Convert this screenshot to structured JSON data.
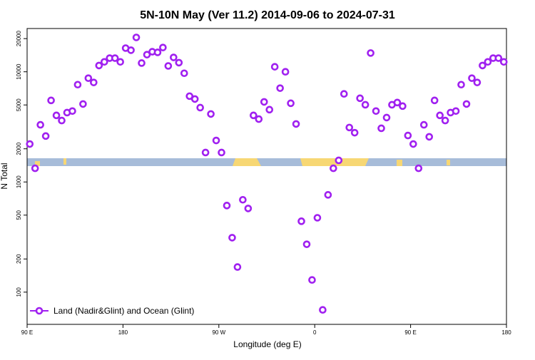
{
  "chart_data": {
    "type": "scatter",
    "title": "5N-10N May (Ver 11.2)   2014-09-06 to 2024-07-31",
    "x_label": "Longitude (deg E)",
    "y_label": "N Total",
    "log_y": true,
    "legend_position": "bottom-left",
    "xlim": [
      90,
      540
    ],
    "ylim": [
      51,
      24700
    ],
    "xticks": [
      {
        "value": 90,
        "label": "90 E"
      },
      180,
      {
        "value": 270,
        "label": "90 W"
      },
      {
        "value": 360,
        "label": "0"
      },
      {
        "value": 450,
        "label": "90 E"
      },
      {
        "value": 540,
        "label": "180"
      }
    ],
    "yticks": [
      100,
      200,
      500,
      1000,
      2000,
      5000,
      10000,
      20000
    ],
    "series": [
      {
        "name": "Land (Nadir&Glint) and Ocean (Glint)",
        "color": "#a020f0",
        "x": [
          92.5,
          97.5,
          102.5,
          107.5,
          112.5,
          117.5,
          122.5,
          127.5,
          132.5,
          137.5,
          142.5,
          147.5,
          152.5,
          157.5,
          162.5,
          167.5,
          172.5,
          177.5,
          182.5,
          187.5,
          192.5,
          197.5,
          202.5,
          207.5,
          212.5,
          217.5,
          222.5,
          227.5,
          232.5,
          237.5,
          242.5,
          247.5,
          252.5,
          257.5,
          262.5,
          267.5,
          272.5,
          277.5,
          282.5,
          287.5,
          292.5,
          297.5,
          302.5,
          307.5,
          312.5,
          317.5,
          322.5,
          327.5,
          332.5,
          337.5,
          342.5,
          347.5,
          352.5,
          357.5,
          362.5,
          367.5,
          372.5,
          377.5,
          382.5,
          387.5,
          392.5,
          397.5,
          402.5,
          407.5,
          412.5,
          417.5,
          422.5,
          427.5,
          432.5,
          437.5,
          442.5,
          447.5,
          452.5,
          457.5,
          462.5,
          467.5,
          472.5,
          477.5,
          482.5,
          487.5,
          492.5,
          497.5,
          502.5,
          507.5,
          512.5,
          517.5,
          522.5,
          527.5,
          532.5,
          537.5
        ],
        "values": [
          2210,
          1330,
          3300,
          2610,
          5500,
          4020,
          3610,
          4260,
          4400,
          7640,
          5100,
          8750,
          8000,
          11400,
          12300,
          13300,
          13300,
          12300,
          16400,
          15700,
          20500,
          12000,
          14300,
          15200,
          15000,
          16600,
          11300,
          13500,
          12100,
          9700,
          6010,
          5660,
          4730,
          1850,
          4140,
          2380,
          1850,
          611,
          312,
          169,
          689,
          575,
          4020,
          3720,
          5330,
          4530,
          11100,
          7100,
          10000,
          5180,
          3360,
          440,
          272,
          129,
          473,
          69,
          764,
          1330,
          1570,
          6300,
          3120,
          2800,
          5750,
          5020,
          14800,
          4400,
          3070,
          3840,
          5020,
          5260,
          4880,
          2640,
          2210,
          1330,
          3300,
          2570,
          5500,
          4020,
          3610,
          4260,
          4400,
          7640,
          5100,
          8750,
          8000,
          11400,
          12300,
          13300,
          13300,
          12300
        ]
      }
    ]
  }
}
